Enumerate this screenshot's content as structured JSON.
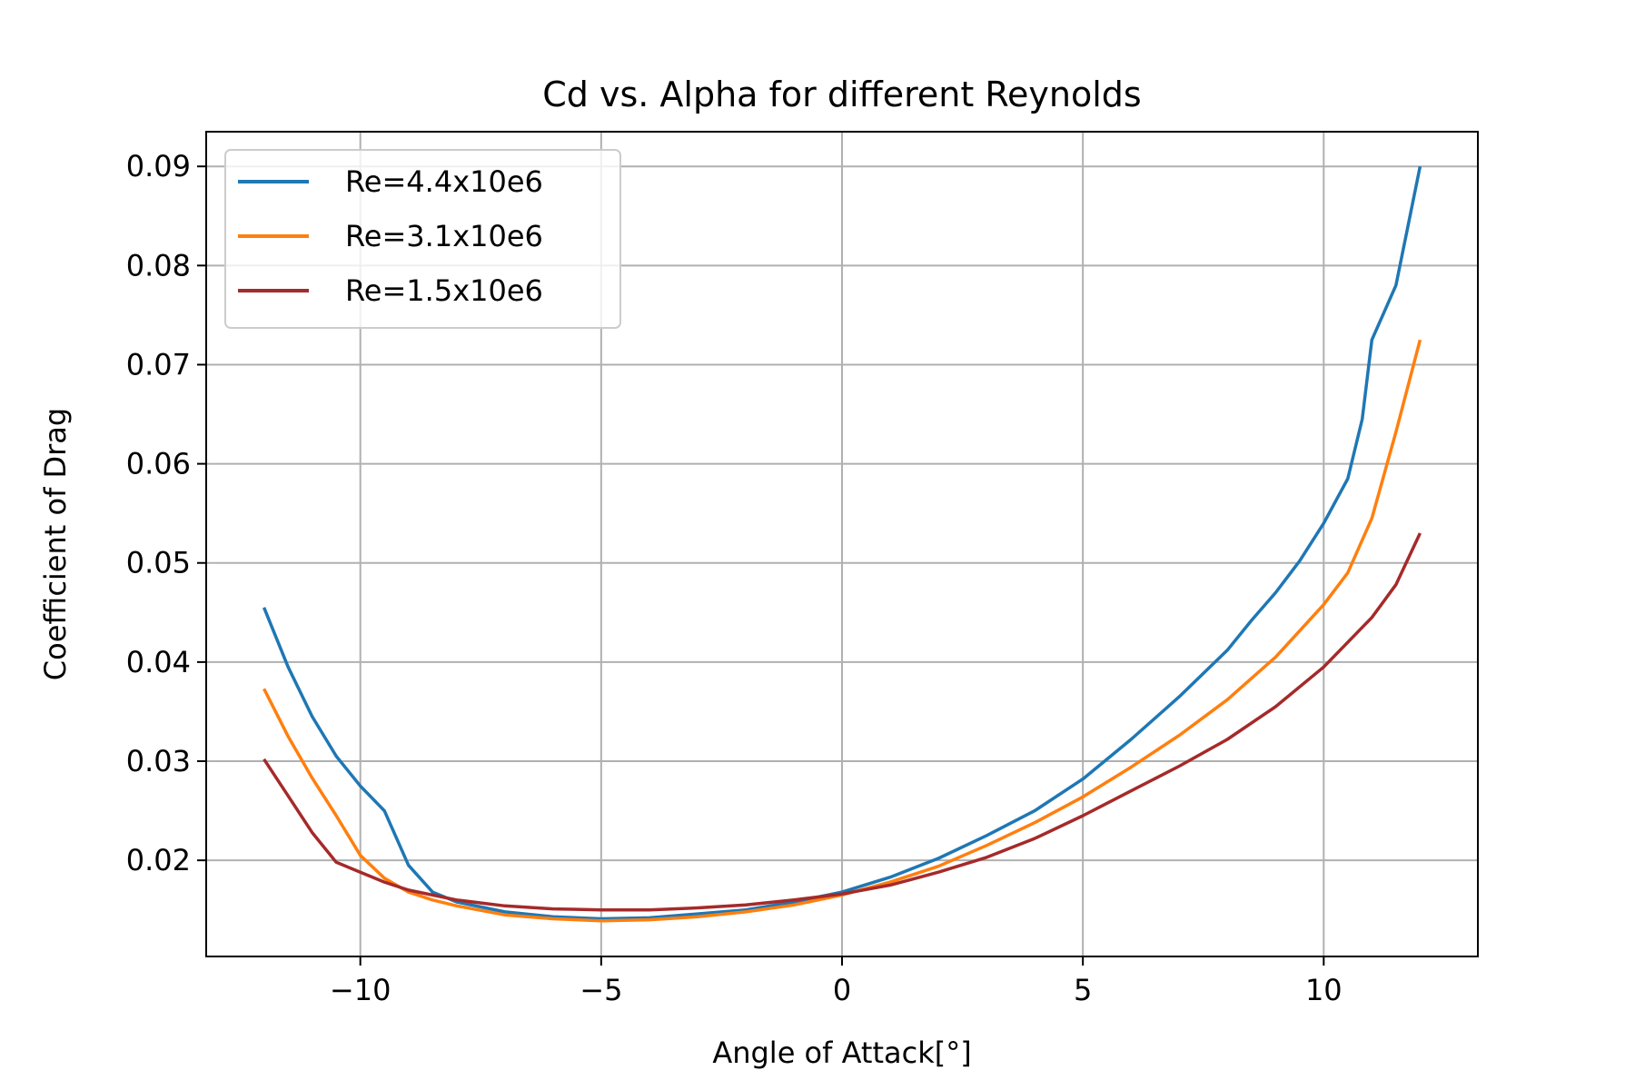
{
  "chart_data": {
    "type": "line",
    "title": "Cd vs. Alpha for different Reynolds",
    "xlabel": "Angle of Attack[°]",
    "ylabel": "Coefficient of Drag",
    "xlim": [
      -13.2,
      13.2
    ],
    "ylim": [
      0.0103,
      0.0935
    ],
    "xticks": [
      -10,
      -5,
      0,
      5,
      10
    ],
    "xtick_labels": [
      "−10",
      "−5",
      "0",
      "5",
      "10"
    ],
    "yticks": [
      0.02,
      0.03,
      0.04,
      0.05,
      0.06,
      0.07,
      0.08,
      0.09
    ],
    "ytick_labels": [
      "0.02",
      "0.03",
      "0.04",
      "0.05",
      "0.06",
      "0.07",
      "0.08",
      "0.09"
    ],
    "grid": true,
    "legend_position": "top-left",
    "series": [
      {
        "name": "Re=4.4x10e6",
        "color": "#1f77b4",
        "x": [
          -12,
          -11.5,
          -11,
          -10.5,
          -10,
          -9.5,
          -9,
          -8.5,
          -8,
          -7,
          -6,
          -5,
          -4,
          -3,
          -2,
          -1,
          0,
          1,
          2,
          3,
          4,
          5,
          6,
          7,
          8,
          8.5,
          9,
          9.5,
          10,
          10.5,
          10.8,
          11,
          11.5,
          12
        ],
        "y": [
          0.0455,
          0.0395,
          0.0345,
          0.0305,
          0.0275,
          0.025,
          0.0195,
          0.0168,
          0.0158,
          0.0148,
          0.0143,
          0.0141,
          0.0142,
          0.0146,
          0.015,
          0.0158,
          0.0168,
          0.0183,
          0.0202,
          0.0225,
          0.025,
          0.0282,
          0.0322,
          0.0365,
          0.0412,
          0.0442,
          0.047,
          0.0502,
          0.054,
          0.0585,
          0.0645,
          0.0725,
          0.078,
          0.09
        ]
      },
      {
        "name": "Re=3.1x10e6",
        "color": "#ff7f0e",
        "x": [
          -12,
          -11.5,
          -11,
          -10.5,
          -10,
          -9.5,
          -9,
          -8.5,
          -8,
          -7,
          -6,
          -5,
          -4,
          -3,
          -2,
          -1,
          0,
          1,
          2,
          3,
          4,
          5,
          6,
          7,
          8,
          9,
          10,
          10.5,
          11,
          11.5,
          12
        ],
        "y": [
          0.0373,
          0.0325,
          0.0283,
          0.0245,
          0.0205,
          0.0182,
          0.0168,
          0.016,
          0.0154,
          0.0145,
          0.0141,
          0.0139,
          0.014,
          0.0143,
          0.0148,
          0.0155,
          0.0165,
          0.0178,
          0.0194,
          0.0215,
          0.0238,
          0.0264,
          0.0294,
          0.0326,
          0.0362,
          0.0405,
          0.0458,
          0.049,
          0.0545,
          0.0632,
          0.0725
        ]
      },
      {
        "name": "Re=1.5x10e6",
        "color": "#a52a2a",
        "x": [
          -12,
          -11.5,
          -11,
          -10.5,
          -10,
          -9.5,
          -9,
          -8,
          -7,
          -6,
          -5,
          -4,
          -3,
          -2,
          -1,
          0,
          1,
          2,
          3,
          4,
          5,
          6,
          7,
          8,
          9,
          10,
          11,
          11.5,
          12
        ],
        "y": [
          0.0302,
          0.0265,
          0.0228,
          0.0198,
          0.0188,
          0.0178,
          0.017,
          0.016,
          0.0154,
          0.0151,
          0.015,
          0.015,
          0.0152,
          0.0155,
          0.016,
          0.0166,
          0.0175,
          0.0188,
          0.0203,
          0.0222,
          0.0245,
          0.027,
          0.0295,
          0.0322,
          0.0355,
          0.0395,
          0.0445,
          0.0478,
          0.053
        ]
      }
    ]
  }
}
